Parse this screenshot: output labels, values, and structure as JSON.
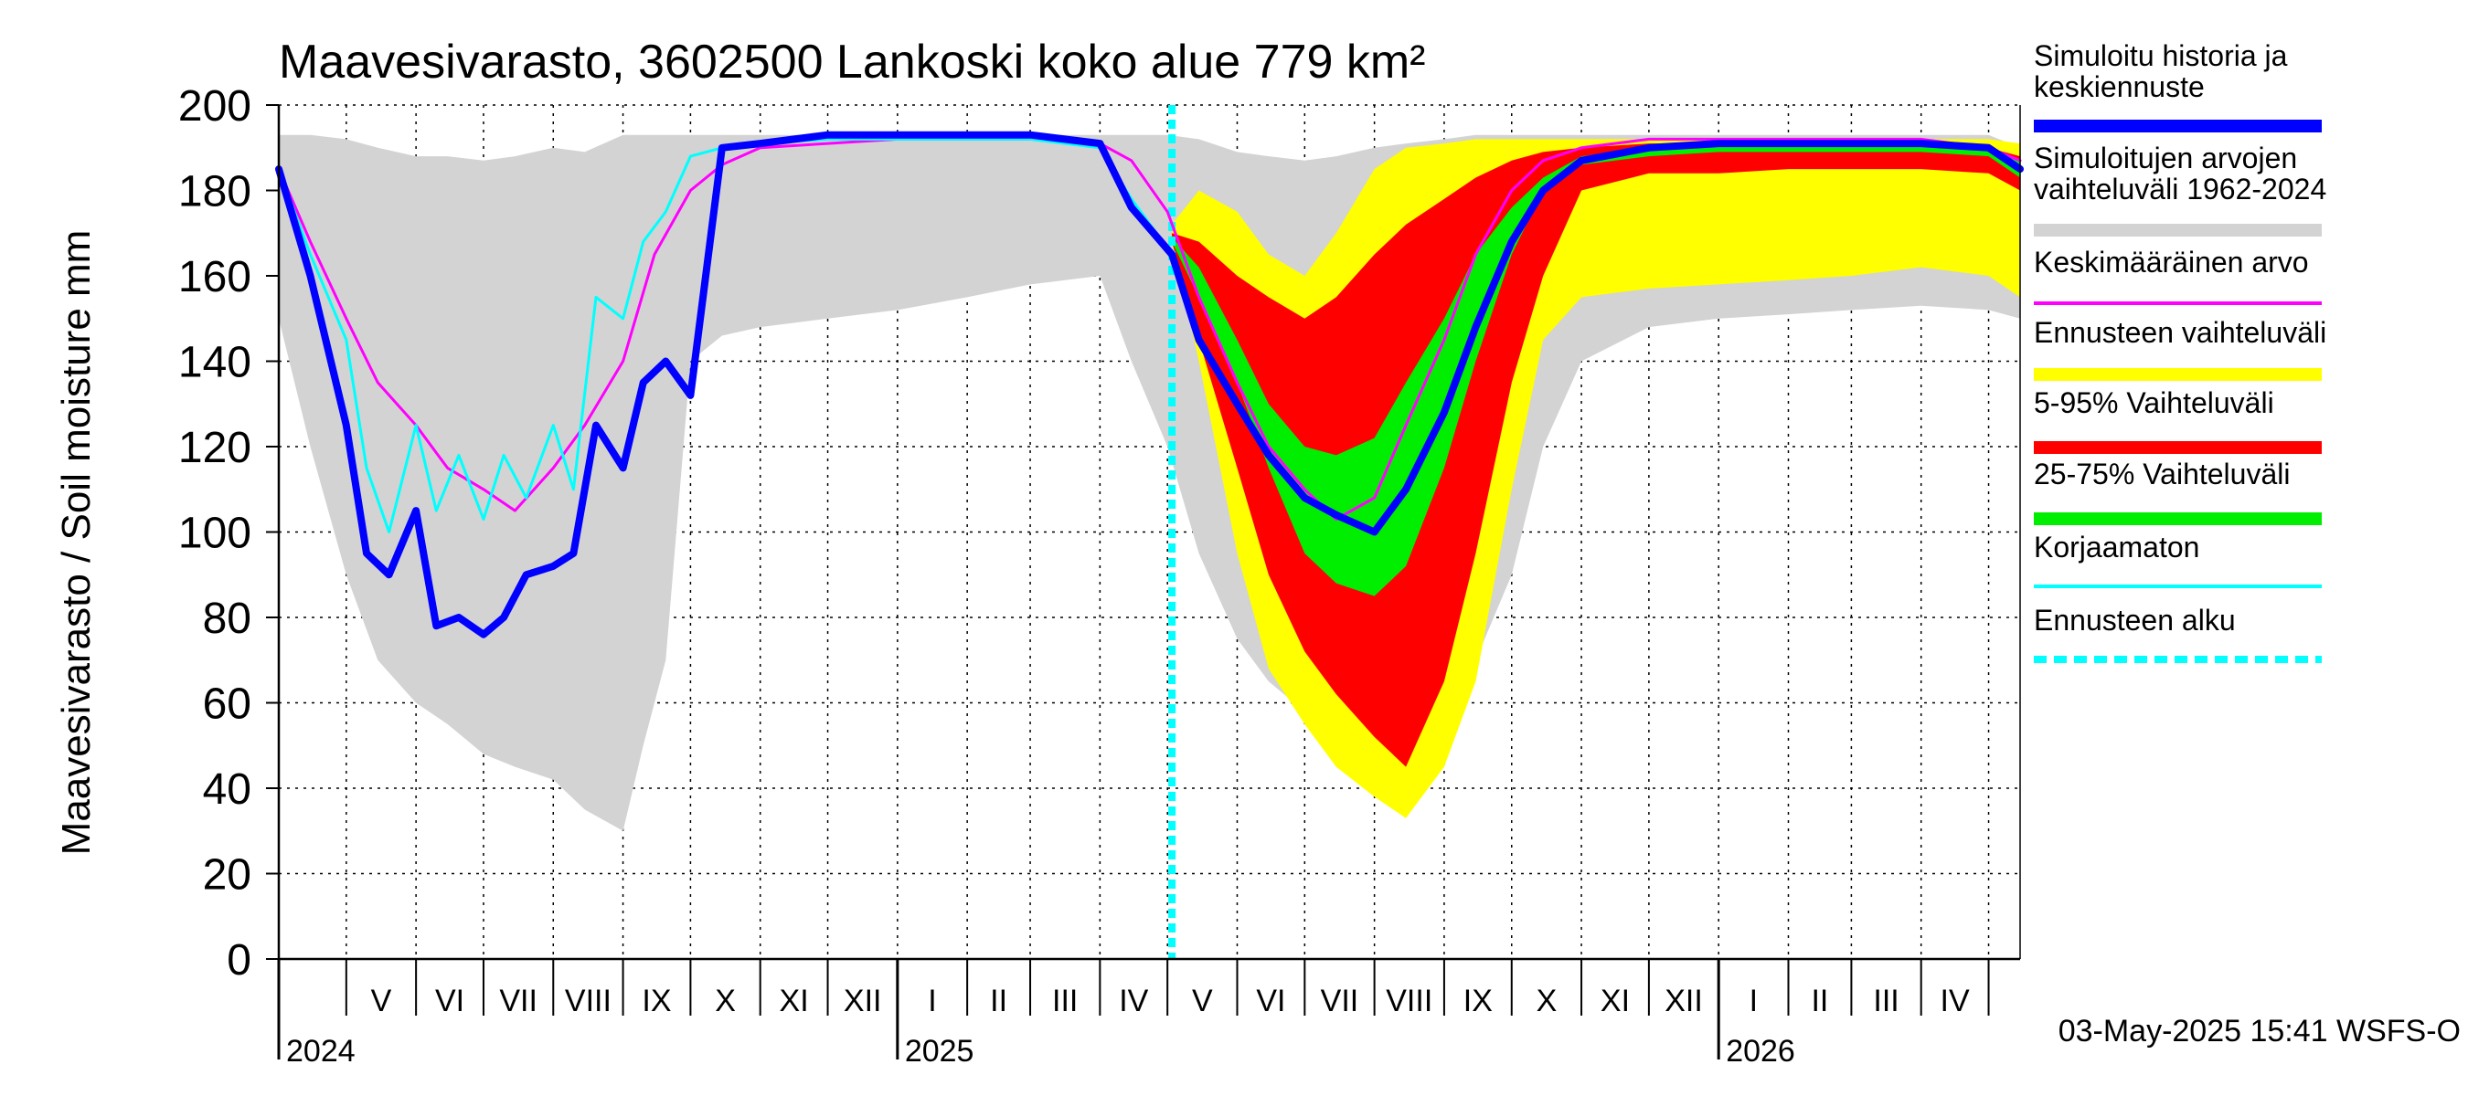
{
  "chart_data": {
    "type": "area",
    "title": "Maavesivarasto, 3602500 Lankoski koko alue 779 km²",
    "ylabel": "Maavesivarasto / Soil moisture   mm",
    "xlabel": "",
    "ylim": [
      0,
      200
    ],
    "yticks": [
      "0",
      "20",
      "40",
      "60",
      "80",
      "100",
      "120",
      "140",
      "160",
      "180",
      "200"
    ],
    "grid": true,
    "legend_position": "right",
    "x_start": "2024-04-01",
    "x_end": "2026-05-15",
    "forecast_start": "2025-05-03",
    "months": [
      {
        "label": "V",
        "date": "2024-05-01"
      },
      {
        "label": "VI",
        "date": "2024-06-01"
      },
      {
        "label": "VII",
        "date": "2024-07-01"
      },
      {
        "label": "VIII",
        "date": "2024-08-01"
      },
      {
        "label": "IX",
        "date": "2024-09-01"
      },
      {
        "label": "X",
        "date": "2024-10-01"
      },
      {
        "label": "XI",
        "date": "2024-11-01"
      },
      {
        "label": "XII",
        "date": "2024-12-01"
      },
      {
        "label": "I",
        "date": "2025-01-01"
      },
      {
        "label": "II",
        "date": "2025-02-01"
      },
      {
        "label": "III",
        "date": "2025-03-01"
      },
      {
        "label": "IV",
        "date": "2025-04-01"
      },
      {
        "label": "V",
        "date": "2025-05-01"
      },
      {
        "label": "VI",
        "date": "2025-06-01"
      },
      {
        "label": "VII",
        "date": "2025-07-01"
      },
      {
        "label": "VIII",
        "date": "2025-08-01"
      },
      {
        "label": "IX",
        "date": "2025-09-01"
      },
      {
        "label": "X",
        "date": "2025-10-01"
      },
      {
        "label": "XI",
        "date": "2025-11-01"
      },
      {
        "label": "XII",
        "date": "2025-12-01"
      },
      {
        "label": "I",
        "date": "2026-01-01"
      },
      {
        "label": "II",
        "date": "2026-02-01"
      },
      {
        "label": "III",
        "date": "2026-03-01"
      },
      {
        "label": "IV",
        "date": "2026-04-01"
      },
      {
        "label": "",
        "date": "2026-05-01"
      }
    ],
    "years": [
      {
        "label": "2024",
        "date": "2024-04-01"
      },
      {
        "label": "2025",
        "date": "2025-01-01"
      },
      {
        "label": "2026",
        "date": "2026-01-01"
      }
    ],
    "series": [
      {
        "name": "Simuloitujen arvojen vaihteluväli 1962-2024",
        "kind": "band",
        "color": "#d3d3d3",
        "x": [
          "2024-04-01",
          "2024-04-15",
          "2024-05-01",
          "2024-05-15",
          "2024-06-01",
          "2024-06-15",
          "2024-07-01",
          "2024-07-15",
          "2024-08-01",
          "2024-08-15",
          "2024-09-01",
          "2024-09-10",
          "2024-09-20",
          "2024-10-01",
          "2024-10-15",
          "2024-11-01",
          "2024-12-01",
          "2025-01-01",
          "2025-02-01",
          "2025-03-01",
          "2025-04-01",
          "2025-04-15",
          "2025-05-01",
          "2025-05-15",
          "2025-06-01",
          "2025-06-15",
          "2025-07-01",
          "2025-07-15",
          "2025-08-01",
          "2025-08-15",
          "2025-09-01",
          "2025-09-15",
          "2025-10-01",
          "2025-10-15",
          "2025-11-01",
          "2025-12-01",
          "2026-01-01",
          "2026-02-01",
          "2026-03-01",
          "2026-04-01",
          "2026-05-01",
          "2026-05-15"
        ],
        "low": [
          150,
          120,
          90,
          70,
          60,
          55,
          48,
          45,
          42,
          35,
          30,
          50,
          70,
          140,
          146,
          148,
          150,
          152,
          155,
          158,
          160,
          140,
          120,
          95,
          75,
          65,
          58,
          48,
          40,
          35,
          50,
          70,
          90,
          120,
          140,
          148,
          150,
          151,
          152,
          153,
          152,
          150
        ],
        "high": [
          193,
          193,
          192,
          190,
          188,
          188,
          187,
          188,
          190,
          189,
          193,
          193,
          193,
          193,
          193,
          193,
          193,
          193,
          193,
          193,
          193,
          193,
          193,
          192,
          189,
          188,
          187,
          188,
          190,
          191,
          192,
          193,
          193,
          193,
          193,
          193,
          193,
          193,
          193,
          193,
          193,
          190
        ]
      },
      {
        "name": "Ennusteen vaihteluväli",
        "kind": "band",
        "color": "#ffff00",
        "x": [
          "2025-05-03",
          "2025-05-15",
          "2025-06-01",
          "2025-06-15",
          "2025-07-01",
          "2025-07-15",
          "2025-08-01",
          "2025-08-15",
          "2025-09-01",
          "2025-09-15",
          "2025-10-01",
          "2025-10-15",
          "2025-11-01",
          "2025-12-01",
          "2026-01-01",
          "2026-02-01",
          "2026-03-01",
          "2026-04-01",
          "2026-05-01",
          "2026-05-15"
        ],
        "low": [
          168,
          140,
          95,
          68,
          55,
          45,
          38,
          33,
          45,
          65,
          110,
          145,
          155,
          157,
          158,
          159,
          160,
          162,
          160,
          155
        ],
        "high": [
          172,
          180,
          175,
          165,
          160,
          170,
          185,
          190,
          191,
          192,
          192,
          192,
          192,
          192,
          192,
          192,
          192,
          192,
          192,
          191
        ]
      },
      {
        "name": "5-95% Vaihteluväli",
        "kind": "band",
        "color": "#ff0000",
        "x": [
          "2025-05-03",
          "2025-05-15",
          "2025-06-01",
          "2025-06-15",
          "2025-07-01",
          "2025-07-15",
          "2025-08-01",
          "2025-08-15",
          "2025-09-01",
          "2025-09-15",
          "2025-10-01",
          "2025-10-15",
          "2025-11-01",
          "2025-12-01",
          "2026-01-01",
          "2026-02-01",
          "2026-03-01",
          "2026-04-01",
          "2026-05-01",
          "2026-05-15"
        ],
        "low": [
          168,
          145,
          115,
          90,
          72,
          62,
          52,
          45,
          65,
          95,
          135,
          160,
          180,
          184,
          184,
          185,
          185,
          185,
          184,
          180
        ],
        "high": [
          170,
          168,
          160,
          155,
          150,
          155,
          165,
          172,
          178,
          183,
          187,
          189,
          190,
          191,
          191,
          191,
          191,
          191,
          190,
          188
        ]
      },
      {
        "name": "25-75% Vaihteluväli",
        "kind": "band",
        "color": "#00ee00",
        "x": [
          "2025-05-03",
          "2025-05-15",
          "2025-06-01",
          "2025-06-15",
          "2025-07-01",
          "2025-07-15",
          "2025-08-01",
          "2025-08-15",
          "2025-09-01",
          "2025-09-15",
          "2025-10-01",
          "2025-10-15",
          "2025-11-01",
          "2025-12-01",
          "2026-01-01",
          "2026-02-01",
          "2026-03-01",
          "2026-04-01",
          "2026-05-01",
          "2026-05-15"
        ],
        "low": [
          168,
          155,
          135,
          115,
          95,
          88,
          85,
          92,
          115,
          140,
          165,
          180,
          186,
          188,
          189,
          189,
          189,
          189,
          188,
          183
        ],
        "high": [
          169,
          162,
          145,
          130,
          120,
          118,
          122,
          135,
          150,
          165,
          176,
          183,
          188,
          190,
          191,
          191,
          191,
          191,
          190,
          187
        ]
      },
      {
        "name": "Keskimääräinen arvo",
        "kind": "line",
        "color": "#ff00ff",
        "width": 3,
        "x": [
          "2024-04-01",
          "2024-04-15",
          "2024-05-01",
          "2024-05-15",
          "2024-06-01",
          "2024-06-15",
          "2024-07-01",
          "2024-07-15",
          "2024-08-01",
          "2024-08-15",
          "2024-09-01",
          "2024-09-15",
          "2024-10-01",
          "2024-10-15",
          "2024-11-01",
          "2024-12-01",
          "2025-01-01",
          "2025-02-01",
          "2025-03-01",
          "2025-04-01",
          "2025-04-15",
          "2025-05-01",
          "2025-05-15",
          "2025-06-01",
          "2025-06-15",
          "2025-07-01",
          "2025-07-15",
          "2025-08-01",
          "2025-08-15",
          "2025-09-01",
          "2025-09-15",
          "2025-10-01",
          "2025-10-15",
          "2025-11-01",
          "2025-12-01",
          "2026-01-01",
          "2026-02-01",
          "2026-03-01",
          "2026-04-01",
          "2026-05-01",
          "2026-05-15"
        ],
        "y": [
          185,
          168,
          150,
          135,
          125,
          115,
          110,
          105,
          115,
          125,
          140,
          165,
          180,
          186,
          190,
          191,
          192,
          192,
          192,
          191,
          187,
          175,
          155,
          135,
          120,
          110,
          103,
          108,
          125,
          145,
          165,
          180,
          187,
          190,
          192,
          192,
          192,
          192,
          192,
          190,
          187
        ]
      },
      {
        "name": "Korjaamaton",
        "kind": "line",
        "color": "#00ffff",
        "width": 3,
        "x": [
          "2024-04-01",
          "2024-04-15",
          "2024-05-01",
          "2024-05-10",
          "2024-05-20",
          "2024-06-01",
          "2024-06-10",
          "2024-06-20",
          "2024-07-01",
          "2024-07-10",
          "2024-07-20",
          "2024-08-01",
          "2024-08-10",
          "2024-08-20",
          "2024-09-01",
          "2024-09-10",
          "2024-09-20",
          "2024-10-01",
          "2024-10-15",
          "2024-11-01",
          "2024-12-01",
          "2025-01-01",
          "2025-02-01",
          "2025-03-01",
          "2025-04-01",
          "2025-04-15",
          "2025-05-03"
        ],
        "y": [
          185,
          165,
          145,
          115,
          100,
          125,
          105,
          118,
          103,
          118,
          108,
          125,
          110,
          155,
          150,
          168,
          175,
          188,
          190,
          191,
          192,
          192,
          192,
          192,
          190,
          178,
          165
        ]
      },
      {
        "name": "Simuloitu historia ja keskiennuste",
        "kind": "line",
        "color": "#0000ff",
        "width": 8,
        "x": [
          "2024-04-01",
          "2024-04-15",
          "2024-05-01",
          "2024-05-10",
          "2024-05-20",
          "2024-06-01",
          "2024-06-10",
          "2024-06-20",
          "2024-07-01",
          "2024-07-10",
          "2024-07-20",
          "2024-08-01",
          "2024-08-10",
          "2024-08-20",
          "2024-09-01",
          "2024-09-10",
          "2024-09-20",
          "2024-10-01",
          "2024-10-15",
          "2024-11-01",
          "2024-12-01",
          "2025-01-01",
          "2025-02-01",
          "2025-03-01",
          "2025-04-01",
          "2025-04-15",
          "2025-05-03",
          "2025-05-15",
          "2025-06-01",
          "2025-06-15",
          "2025-07-01",
          "2025-07-15",
          "2025-08-01",
          "2025-08-15",
          "2025-09-01",
          "2025-09-15",
          "2025-10-01",
          "2025-10-15",
          "2025-11-01",
          "2025-12-01",
          "2026-01-01",
          "2026-02-01",
          "2026-03-01",
          "2026-04-01",
          "2026-05-01",
          "2026-05-15"
        ],
        "y": [
          185,
          160,
          125,
          95,
          90,
          105,
          78,
          80,
          76,
          80,
          90,
          92,
          95,
          125,
          115,
          135,
          140,
          132,
          190,
          191,
          193,
          193,
          193,
          193,
          191,
          176,
          165,
          145,
          130,
          118,
          108,
          104,
          100,
          110,
          128,
          148,
          168,
          180,
          187,
          190,
          191,
          191,
          191,
          191,
          190,
          185
        ]
      }
    ],
    "legend": [
      {
        "label": "Simuloitu historia ja keskiennuste",
        "color": "#0000ff",
        "style": "thick"
      },
      {
        "label": "Simuloitujen arvojen vaihteluväli 1962-2024",
        "color": "#d3d3d3",
        "style": "thick"
      },
      {
        "label": "Keskimääräinen arvo",
        "color": "#ff00ff",
        "style": "thin"
      },
      {
        "label": "Ennusteen vaihteluväli",
        "color": "#ffff00",
        "style": "thick"
      },
      {
        "label": "5-95% Vaihteluväli",
        "color": "#ff0000",
        "style": "thick"
      },
      {
        "label": "25-75% Vaihteluväli",
        "color": "#00ee00",
        "style": "thick"
      },
      {
        "label": "Korjaamaton",
        "color": "#00ffff",
        "style": "thin"
      },
      {
        "label": "Ennusteen alku",
        "color": "#00ffff",
        "style": "dashed"
      }
    ],
    "footer": "03-May-2025 15:41 WSFS-O"
  }
}
